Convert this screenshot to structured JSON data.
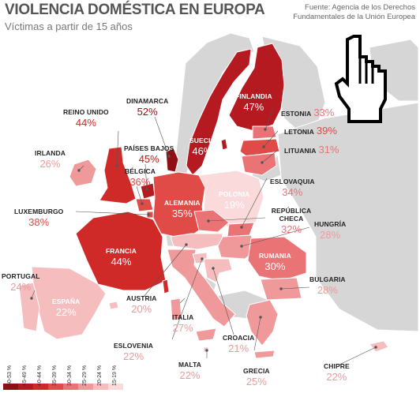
{
  "title": "VIOLENCIA DOMÉSTICA EN EUROPA",
  "subtitle": "Víctimas a partir de 15 años",
  "source_line1": "Fuente: Agencia de los Derechos",
  "source_line2": "Fundamentales de la Unión Europea",
  "legend": {
    "bins": [
      {
        "label": "50-53 %",
        "color": "#8e1014"
      },
      {
        "label": "45-49 %",
        "color": "#b41a1f"
      },
      {
        "label": "40-44 %",
        "color": "#d02a28"
      },
      {
        "label": "35-39 %",
        "color": "#e04a47"
      },
      {
        "label": "30-34 %",
        "color": "#e97375"
      },
      {
        "label": "25-29 %",
        "color": "#f0999a"
      },
      {
        "label": "20-24 %",
        "color": "#f6bdbe"
      },
      {
        "label": "15-19 %",
        "color": "#fadadb"
      }
    ]
  },
  "colors": {
    "non_eu": "#d6d6d6",
    "border": "#ffffff",
    "title": "#555555"
  },
  "icon": "hand-pointer-icon",
  "countries": [
    {
      "name": "FINLANDIA",
      "value": "47%",
      "pct": 47
    },
    {
      "name": "SUECIA",
      "value": "46%",
      "pct": 46
    },
    {
      "name": "DINAMARCA",
      "value": "52%",
      "pct": 52
    },
    {
      "name": "ESTONIA",
      "value": "33%",
      "pct": 33
    },
    {
      "name": "LETONIA",
      "value": "39%",
      "pct": 39
    },
    {
      "name": "LITUANIA",
      "value": "31%",
      "pct": 31
    },
    {
      "name": "REINO UNIDO",
      "value": "44%",
      "pct": 44
    },
    {
      "name": "IRLANDA",
      "value": "26%",
      "pct": 26
    },
    {
      "name": "PAÍSES BAJOS",
      "value": "45%",
      "pct": 45
    },
    {
      "name": "BÉLGICA",
      "value": "36%",
      "pct": 36
    },
    {
      "name": "LUXEMBURGO",
      "value": "38%",
      "pct": 38
    },
    {
      "name": "ALEMANIA",
      "value": "35%",
      "pct": 35
    },
    {
      "name": "POLONIA",
      "value": "19%",
      "pct": 19
    },
    {
      "name": "ESLOVAQUIA",
      "value": "34%",
      "pct": 34
    },
    {
      "name": "REPÚBLICA CHECA",
      "value": "32%",
      "pct": 32
    },
    {
      "name": "HUNGRÍA",
      "value": "28%",
      "pct": 28
    },
    {
      "name": "FRANCIA",
      "value": "44%",
      "pct": 44
    },
    {
      "name": "RUMANIA",
      "value": "30%",
      "pct": 30
    },
    {
      "name": "BULGARIA",
      "value": "28%",
      "pct": 28
    },
    {
      "name": "PORTUGAL",
      "value": "24%",
      "pct": 24
    },
    {
      "name": "ESPAÑA",
      "value": "22%",
      "pct": 22
    },
    {
      "name": "AUSTRIA",
      "value": "20%",
      "pct": 20
    },
    {
      "name": "ITALIA",
      "value": "27%",
      "pct": 27
    },
    {
      "name": "ESLOVENIA",
      "value": "22%",
      "pct": 22
    },
    {
      "name": "CROACIA",
      "value": "21%",
      "pct": 21
    },
    {
      "name": "MALTA",
      "value": "22%",
      "pct": 22
    },
    {
      "name": "GRECIA",
      "value": "25%",
      "pct": 25
    },
    {
      "name": "CHIPRE",
      "value": "22%",
      "pct": 22
    }
  ]
}
